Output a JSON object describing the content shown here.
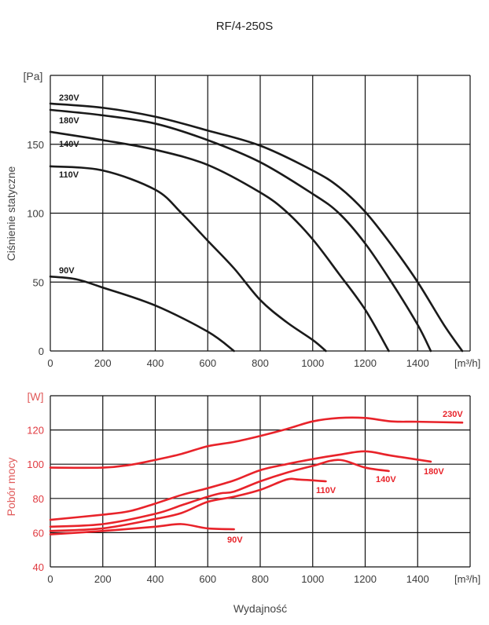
{
  "title": "RF/4-250S",
  "xlabel": "Wydajność",
  "colors": {
    "pressure": "#1a1a1a",
    "power": "#e8232a"
  },
  "chart_data": [
    {
      "type": "line",
      "title": "RF/4-250S",
      "ylabel": "Ciśnienie statyczne",
      "yunit": "[Pa]",
      "xunit_label": "[m³/h]",
      "xlim": [
        0,
        1600
      ],
      "ylim": [
        0,
        200
      ],
      "xticks": [
        0,
        200,
        400,
        600,
        800,
        1000,
        1200,
        1400
      ],
      "yticks": [
        0,
        50,
        100,
        150
      ],
      "grid": true,
      "series": [
        {
          "name": "230V",
          "points": [
            [
              0,
              179.5
            ],
            [
              200,
              176.5
            ],
            [
              400,
              170
            ],
            [
              600,
              160
            ],
            [
              800,
              149
            ],
            [
              1000,
              131
            ],
            [
              1100,
              119
            ],
            [
              1200,
              101
            ],
            [
              1300,
              77
            ],
            [
              1400,
              50
            ],
            [
              1500,
              19
            ],
            [
              1570,
              0
            ]
          ]
        },
        {
          "name": "180V",
          "points": [
            [
              0,
              175
            ],
            [
              200,
              171
            ],
            [
              400,
              165
            ],
            [
              600,
              153
            ],
            [
              800,
              137
            ],
            [
              1000,
              114
            ],
            [
              1100,
              100
            ],
            [
              1200,
              78
            ],
            [
              1300,
              50
            ],
            [
              1400,
              19
            ],
            [
              1450,
              0
            ]
          ]
        },
        {
          "name": "140V",
          "points": [
            [
              0,
              159
            ],
            [
              200,
              153
            ],
            [
              400,
              146
            ],
            [
              600,
              135
            ],
            [
              800,
              115
            ],
            [
              900,
              101
            ],
            [
              1000,
              81
            ],
            [
              1100,
              56
            ],
            [
              1200,
              30
            ],
            [
              1290,
              0
            ]
          ]
        },
        {
          "name": "110V",
          "points": [
            [
              0,
              134
            ],
            [
              200,
              131
            ],
            [
              400,
              117
            ],
            [
              500,
              100
            ],
            [
              600,
              80
            ],
            [
              700,
              60
            ],
            [
              800,
              37
            ],
            [
              900,
              21
            ],
            [
              1000,
              8
            ],
            [
              1050,
              0
            ]
          ]
        },
        {
          "name": "90V",
          "points": [
            [
              0,
              54
            ],
            [
              100,
              52
            ],
            [
              200,
              46
            ],
            [
              400,
              33
            ],
            [
              600,
              14
            ],
            [
              700,
              0
            ]
          ]
        }
      ]
    },
    {
      "type": "line",
      "ylabel": "Pobór mocy",
      "yunit": "[W]",
      "xunit_label": "[m³/h]",
      "xlim": [
        0,
        1600
      ],
      "ylim": [
        40,
        140
      ],
      "xticks": [
        0,
        200,
        400,
        600,
        800,
        1000,
        1200,
        1400
      ],
      "yticks": [
        40,
        60,
        80,
        100,
        120
      ],
      "grid": true,
      "series": [
        {
          "name": "230V",
          "points": [
            [
              0,
              98
            ],
            [
              200,
              98
            ],
            [
              300,
              99.5
            ],
            [
              400,
              102.5
            ],
            [
              500,
              106
            ],
            [
              600,
              110.5
            ],
            [
              700,
              113
            ],
            [
              800,
              116.5
            ],
            [
              900,
              120.5
            ],
            [
              1000,
              125
            ],
            [
              1100,
              127
            ],
            [
              1200,
              127
            ],
            [
              1300,
              125
            ],
            [
              1400,
              124.8
            ],
            [
              1570,
              124.3
            ]
          ]
        },
        {
          "name": "180V",
          "points": [
            [
              0,
              67.5
            ],
            [
              200,
              70.5
            ],
            [
              300,
              72.5
            ],
            [
              400,
              77
            ],
            [
              500,
              82
            ],
            [
              600,
              86
            ],
            [
              700,
              90.5
            ],
            [
              800,
              96.5
            ],
            [
              900,
              100
            ],
            [
              1000,
              103
            ],
            [
              1100,
              105.5
            ],
            [
              1200,
              107.5
            ],
            [
              1300,
              105
            ],
            [
              1450,
              101.5
            ]
          ]
        },
        {
          "name": "140V",
          "points": [
            [
              0,
              63.5
            ],
            [
              200,
              65
            ],
            [
              400,
              71
            ],
            [
              500,
              76
            ],
            [
              600,
              81
            ],
            [
              650,
              83
            ],
            [
              700,
              84
            ],
            [
              800,
              90
            ],
            [
              900,
              95
            ],
            [
              1000,
              99
            ],
            [
              1100,
              102.5
            ],
            [
              1200,
              98
            ],
            [
              1290,
              96
            ]
          ]
        },
        {
          "name": "110V",
          "points": [
            [
              0,
              61
            ],
            [
              200,
              62.5
            ],
            [
              400,
              68
            ],
            [
              500,
              71.5
            ],
            [
              600,
              78
            ],
            [
              700,
              81
            ],
            [
              800,
              85
            ],
            [
              900,
              91
            ],
            [
              950,
              91
            ],
            [
              1050,
              90
            ]
          ]
        },
        {
          "name": "90V",
          "points": [
            [
              0,
              59
            ],
            [
              200,
              61
            ],
            [
              400,
              63.5
            ],
            [
              500,
              65
            ],
            [
              600,
              62.5
            ],
            [
              700,
              62
            ]
          ]
        }
      ]
    }
  ]
}
